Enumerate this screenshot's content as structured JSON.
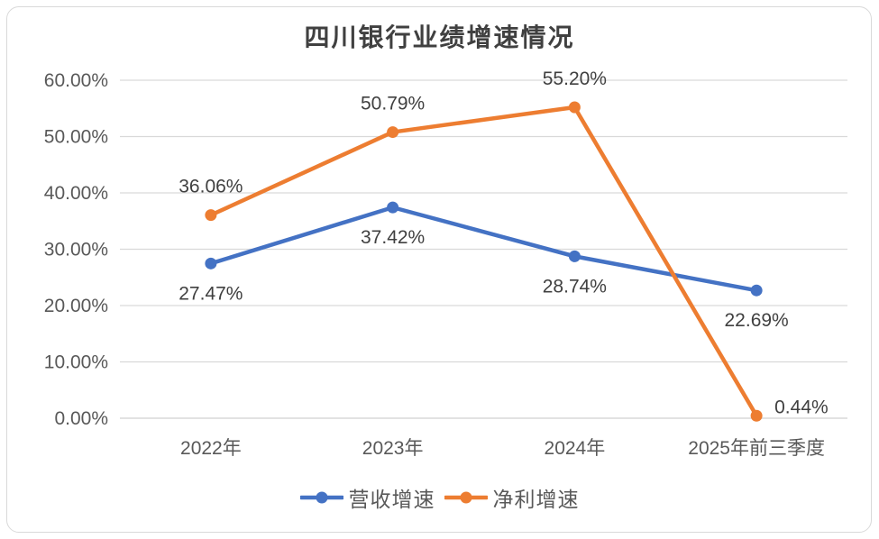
{
  "chart_data": {
    "type": "line",
    "title": "四川银行业绩增速情况",
    "categories": [
      "2022年",
      "2023年",
      "2024年",
      "2025年前三季度"
    ],
    "series": [
      {
        "name": "营收增速",
        "color": "#4472C4",
        "values": [
          27.47,
          37.42,
          28.74,
          22.69
        ],
        "data_labels": [
          "27.47%",
          "37.42%",
          "28.74%",
          "22.69%"
        ],
        "label_positions": [
          "below",
          "below",
          "below",
          "below"
        ]
      },
      {
        "name": "净利增速",
        "color": "#ED7D31",
        "values": [
          36.06,
          50.79,
          55.2,
          0.44
        ],
        "data_labels": [
          "36.06%",
          "50.79%",
          "55.20%",
          "0.44%"
        ],
        "label_positions": [
          "above",
          "above",
          "above",
          "right"
        ]
      }
    ],
    "y_axis": {
      "min": 0,
      "max": 60,
      "ticks": [
        {
          "value": 0,
          "label": "0.00%"
        },
        {
          "value": 10,
          "label": "10.00%"
        },
        {
          "value": 20,
          "label": "20.00%"
        },
        {
          "value": 30,
          "label": "30.00%"
        },
        {
          "value": 40,
          "label": "40.00%"
        },
        {
          "value": 50,
          "label": "50.00%"
        },
        {
          "value": 60,
          "label": "60.00%"
        }
      ],
      "grid": true
    },
    "legend_position": "bottom",
    "colors": {
      "grid": "#d9d9d9",
      "axis_text": "#595959",
      "label_text": "#404040",
      "title_text": "#404040"
    }
  }
}
